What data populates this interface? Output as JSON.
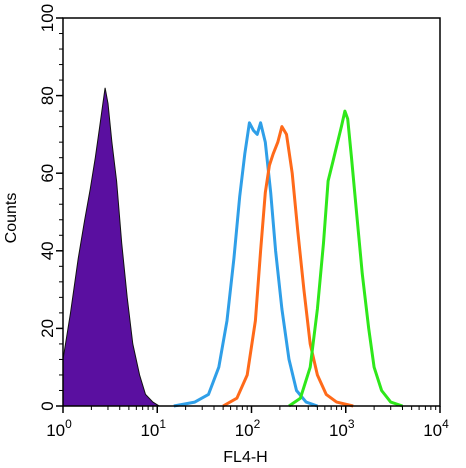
{
  "chart_data": {
    "type": "area",
    "title": "",
    "xlabel": "FL4-H",
    "ylabel": "Counts",
    "xscale": "log",
    "xlim": [
      1,
      10000
    ],
    "ylim": [
      0,
      100
    ],
    "x_ticks": [
      {
        "base": "10",
        "exp": "0",
        "value": 1
      },
      {
        "base": "10",
        "exp": "1",
        "value": 10
      },
      {
        "base": "10",
        "exp": "2",
        "value": 100
      },
      {
        "base": "10",
        "exp": "3",
        "value": 1000
      },
      {
        "base": "10",
        "exp": "4",
        "value": 10000
      }
    ],
    "y_ticks": [
      0,
      20,
      40,
      60,
      80,
      100
    ],
    "grid": false,
    "legend": "none",
    "series": [
      {
        "color": "#5a0fa0",
        "filled": true,
        "points": [
          [
            1.0,
            12
          ],
          [
            1.2,
            24
          ],
          [
            1.45,
            38
          ],
          [
            1.7,
            48
          ],
          [
            1.95,
            56
          ],
          [
            2.2,
            64
          ],
          [
            2.45,
            72
          ],
          [
            2.65,
            78
          ],
          [
            2.8,
            82
          ],
          [
            3.0,
            78
          ],
          [
            3.3,
            68
          ],
          [
            3.7,
            58
          ],
          [
            4.2,
            42
          ],
          [
            4.8,
            28
          ],
          [
            5.5,
            16
          ],
          [
            6.5,
            8
          ],
          [
            7.5,
            3
          ],
          [
            9.0,
            1
          ],
          [
            10.5,
            0
          ]
        ]
      },
      {
        "color": "#2f9fe8",
        "filled": false,
        "points": [
          [
            15,
            0
          ],
          [
            25,
            1
          ],
          [
            35,
            3
          ],
          [
            45,
            10
          ],
          [
            55,
            22
          ],
          [
            65,
            38
          ],
          [
            75,
            54
          ],
          [
            85,
            65
          ],
          [
            95,
            73
          ],
          [
            105,
            71
          ],
          [
            115,
            70
          ],
          [
            125,
            73
          ],
          [
            140,
            68
          ],
          [
            160,
            55
          ],
          [
            180,
            40
          ],
          [
            210,
            25
          ],
          [
            250,
            12
          ],
          [
            300,
            4
          ],
          [
            380,
            1
          ],
          [
            500,
            0
          ]
        ]
      },
      {
        "color": "#ff6a1a",
        "filled": false,
        "points": [
          [
            50,
            0
          ],
          [
            70,
            2
          ],
          [
            90,
            8
          ],
          [
            110,
            22
          ],
          [
            125,
            40
          ],
          [
            140,
            55
          ],
          [
            155,
            62
          ],
          [
            170,
            65
          ],
          [
            190,
            68
          ],
          [
            210,
            72
          ],
          [
            235,
            70
          ],
          [
            270,
            60
          ],
          [
            310,
            45
          ],
          [
            360,
            30
          ],
          [
            420,
            16
          ],
          [
            500,
            8
          ],
          [
            620,
            3
          ],
          [
            800,
            1
          ],
          [
            1200,
            0
          ]
        ]
      },
      {
        "color": "#2ee81a",
        "filled": false,
        "points": [
          [
            250,
            0
          ],
          [
            330,
            2
          ],
          [
            420,
            10
          ],
          [
            500,
            25
          ],
          [
            580,
            42
          ],
          [
            650,
            58
          ],
          [
            730,
            63
          ],
          [
            820,
            68
          ],
          [
            900,
            72
          ],
          [
            980,
            76
          ],
          [
            1050,
            74
          ],
          [
            1150,
            64
          ],
          [
            1300,
            50
          ],
          [
            1500,
            34
          ],
          [
            1750,
            20
          ],
          [
            2000,
            10
          ],
          [
            2400,
            4
          ],
          [
            3000,
            1
          ],
          [
            4000,
            0
          ]
        ]
      }
    ]
  }
}
